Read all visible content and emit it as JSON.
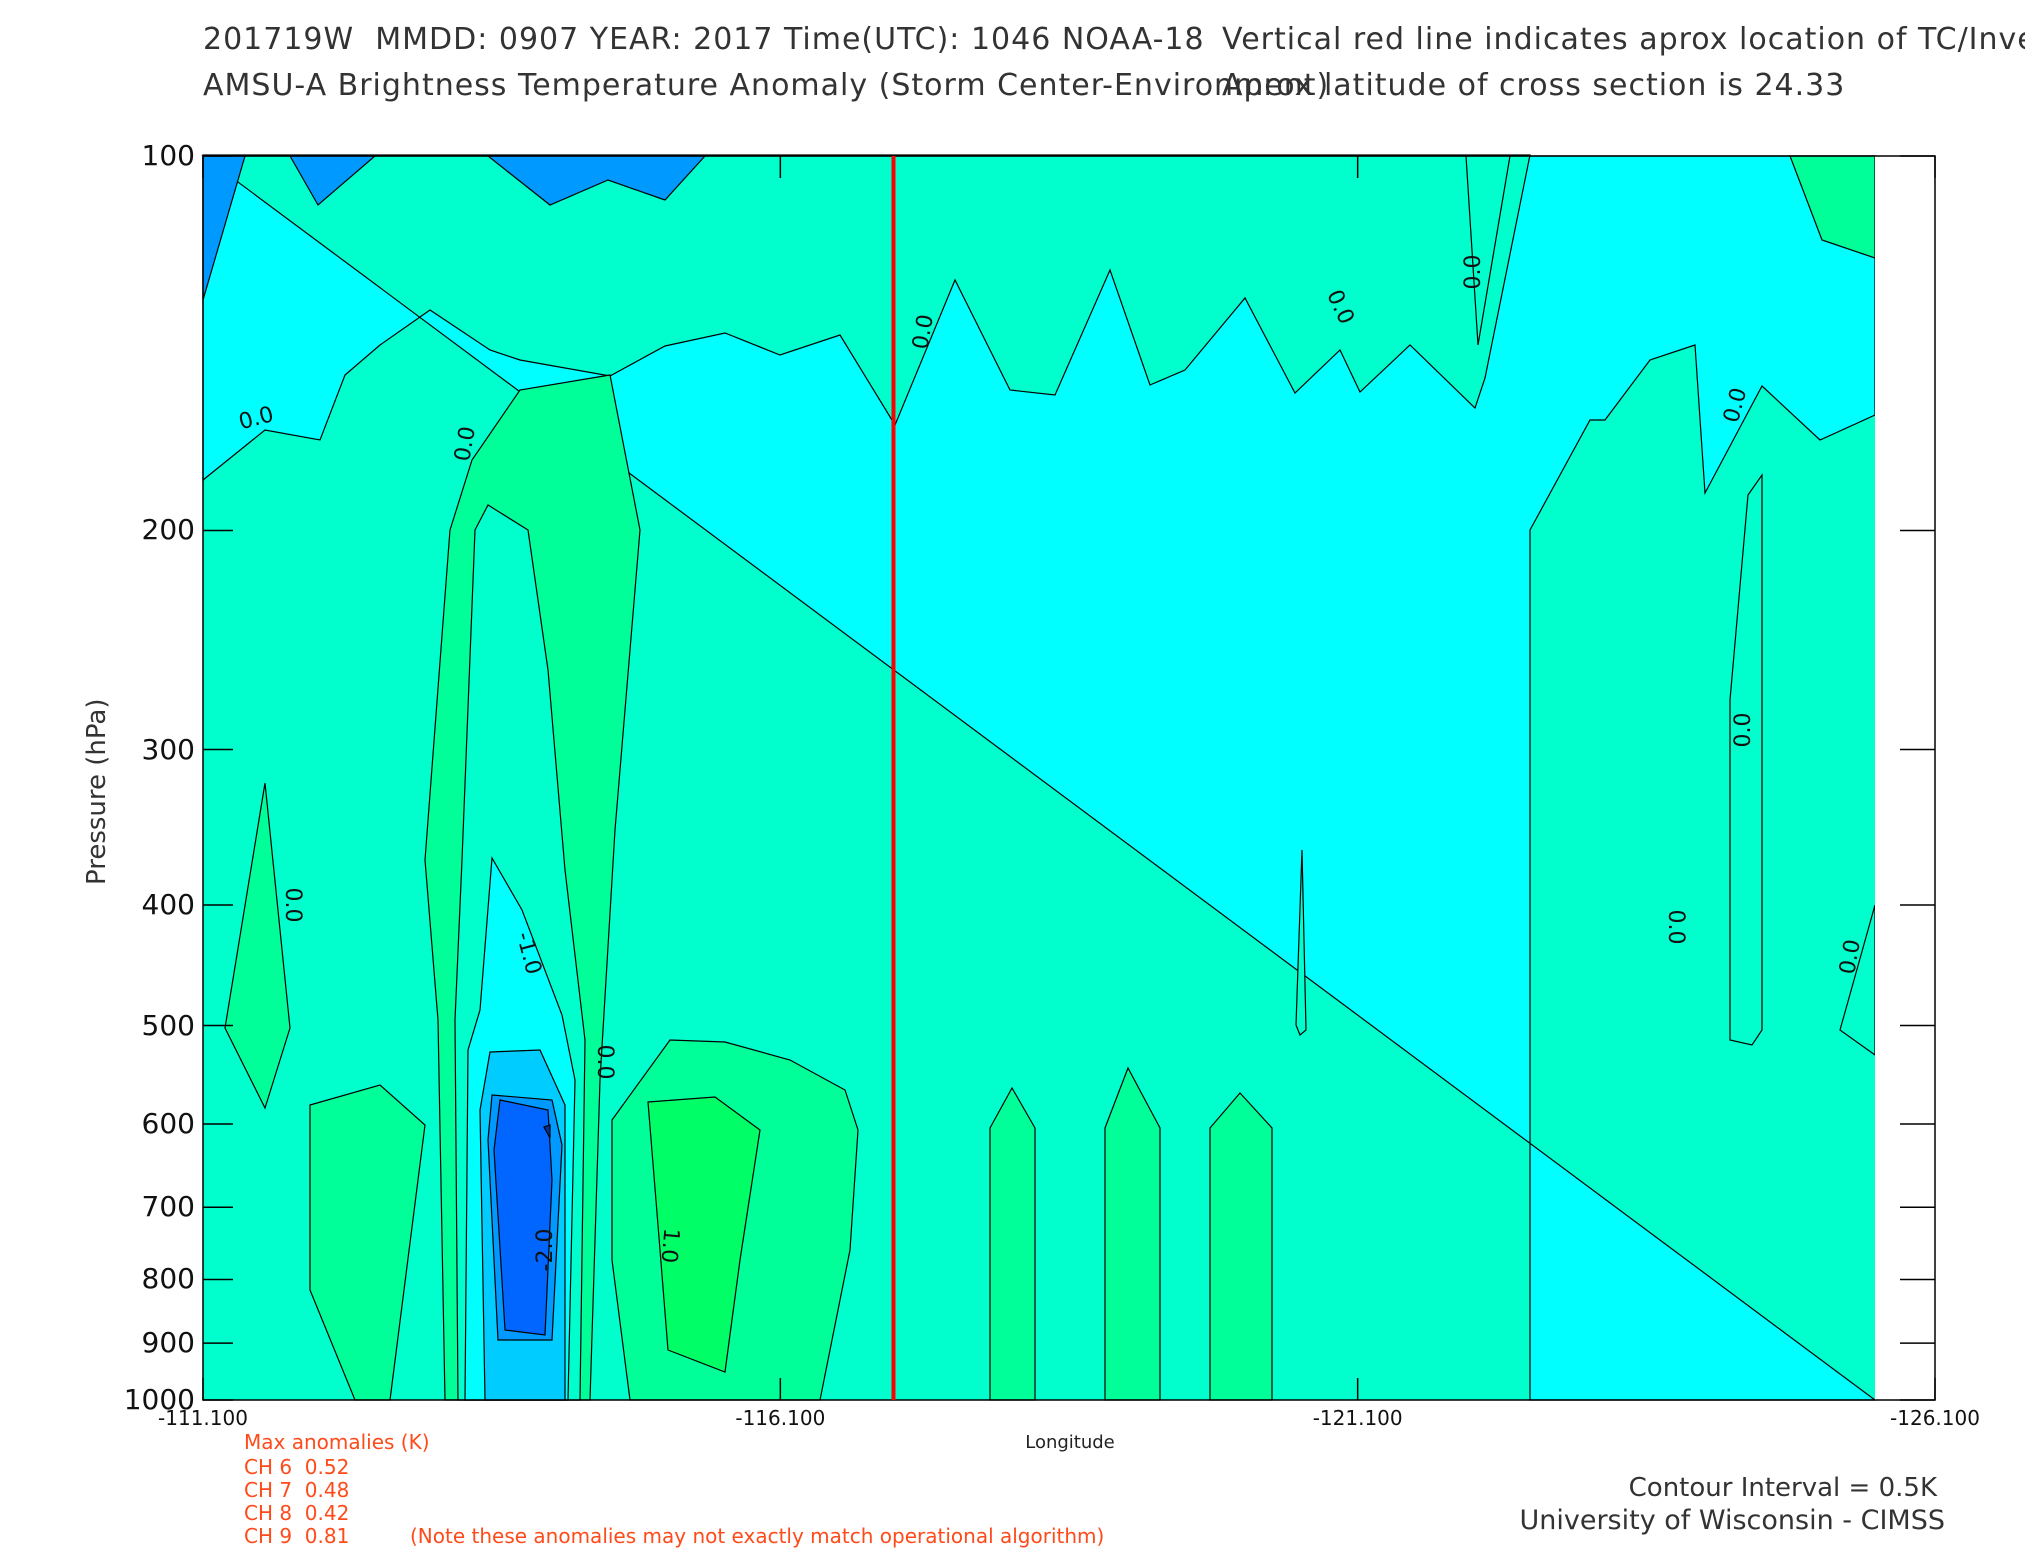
{
  "header": {
    "line1_left": "201719W  MMDD: 0907 YEAR: 2017 Time(UTC): 1046 NOAA-18",
    "line2_left": "AMSU-A Brightness Temperature Anomaly (Storm Center-Environment)",
    "line1_right": "Vertical red line indicates aprox location of TC/Invest",
    "line2_right": "Aprox latitude of cross section is 24.33"
  },
  "chart_data": {
    "type": "contour",
    "xlabel": "Longitude",
    "ylabel": "Pressure (hPa)",
    "x_ticks": [
      "-111.100",
      "-116.100",
      "-121.100",
      "-126.100"
    ],
    "y_ticks": [
      "100",
      "200",
      "300",
      "400",
      "500",
      "600",
      "700",
      "800",
      "900",
      "1000"
    ],
    "xlim": [
      -111.1,
      -126.1
    ],
    "ylim": [
      1000,
      100
    ],
    "y_scale": "log",
    "tc_longitude": -117.08,
    "contour_interval_K": 0.5,
    "contour_labels": [
      "0.0",
      "0.0",
      "0.0",
      "0.0",
      "0.0",
      "0.0",
      "0.0",
      "0.0",
      "0.0",
      "0.0",
      "0.0",
      "-1.0",
      "-2.0",
      "1.0"
    ],
    "colors": {
      "neg_2": "#0066ff",
      "neg_15": "#0099ff",
      "neg_1": "#00ccff",
      "neg_05": "#00ffff",
      "zero": "#00ffcc",
      "pos_05": "#00ff99",
      "pos_1": "#00ff66",
      "tc_line": "#ff0000"
    }
  },
  "anomalies": {
    "title": "Max anomalies (K)",
    "rows": [
      "CH 6  0.52",
      "CH 7  0.48",
      "CH 8  0.42",
      "CH 9  0.81"
    ],
    "note": "(Note these anomalies may not exactly match operational algorithm)"
  },
  "footer": {
    "interval": "Contour Interval = 0.5K",
    "credit": "University of Wisconsin - CIMSS"
  }
}
